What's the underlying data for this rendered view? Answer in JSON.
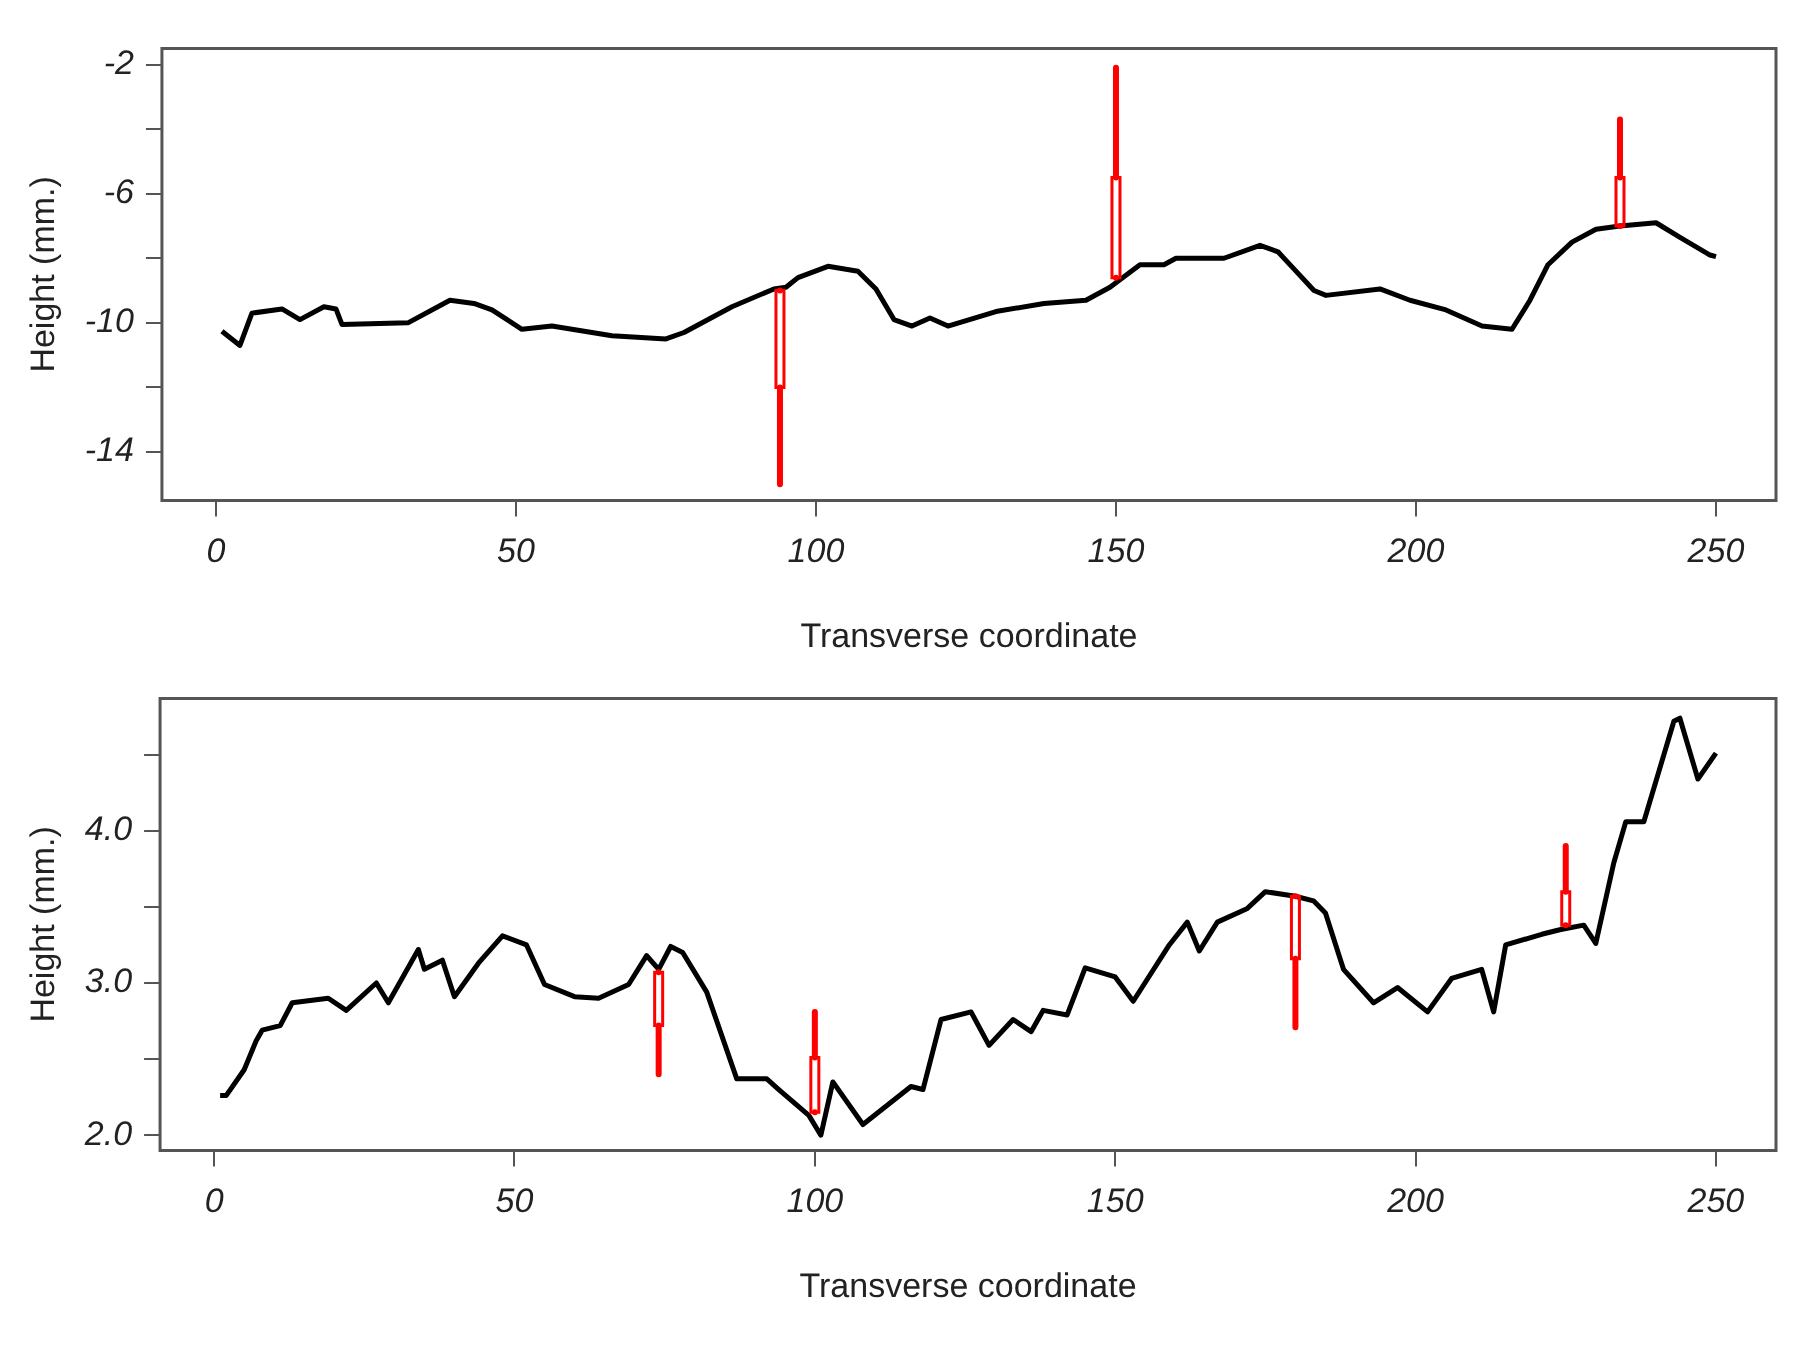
{
  "chart_data": [
    {
      "type": "line",
      "xlabel": "Transverse coordinate",
      "ylabel": "Height (mm.)",
      "xlim": [
        -9,
        260
      ],
      "xticks": [
        0,
        50,
        100,
        150,
        200,
        250
      ],
      "ylim": [
        -15.5,
        -1.5
      ],
      "yticks": [
        {
          "value": -14,
          "label": "-14"
        },
        {
          "value": -12,
          "label": null
        },
        {
          "value": -10,
          "label": "-10"
        },
        {
          "value": -8,
          "label": null
        },
        {
          "value": -6,
          "label": "-6"
        },
        {
          "value": -4,
          "label": null
        },
        {
          "value": -2,
          "label": "-2"
        }
      ],
      "series": [
        {
          "color": "#000000",
          "x": [
            1,
            4,
            6,
            11,
            14,
            18,
            20,
            21,
            32,
            39,
            43,
            46,
            51,
            56,
            66,
            75,
            78,
            86,
            93,
            95,
            97,
            102,
            107,
            110,
            113,
            116,
            119,
            122,
            130,
            138,
            145,
            149,
            154,
            158,
            160,
            168,
            174,
            177,
            180,
            183,
            185,
            194,
            199,
            205,
            211,
            216,
            219,
            222,
            226,
            230,
            234,
            240,
            244,
            249,
            250
          ],
          "values": [
            -10.26,
            -10.7,
            -9.7,
            -9.57,
            -9.9,
            -9.5,
            -9.57,
            -10.05,
            -10,
            -9.3,
            -9.4,
            -9.6,
            -10.2,
            -10.1,
            -10.4,
            -10.5,
            -10.3,
            -9.5,
            -8.95,
            -8.9,
            -8.6,
            -8.25,
            -8.4,
            -8.95,
            -9.9,
            -10.1,
            -9.85,
            -10.1,
            -9.65,
            -9.4,
            -9.3,
            -8.9,
            -8.2,
            -8.2,
            -8,
            -8,
            -7.6,
            -7.8,
            -8.4,
            -9,
            -9.15,
            -8.95,
            -9.3,
            -9.6,
            -10.1,
            -10.2,
            -9.3,
            -8.2,
            -7.5,
            -7.1,
            -7,
            -6.9,
            -7.35,
            -7.9,
            -7.95
          ]
        },
        {
          "type": "candlestick",
          "color": "#ff0000",
          "x": [
            94,
            150,
            234
          ],
          "ohlc": [
            [
              -12,
              -9,
              -15,
              -9
            ],
            [
              -8.6,
              -2.1,
              -8.6,
              -5.5
            ],
            [
              -7,
              -3.7,
              -7,
              -5.5
            ]
          ]
        }
      ]
    },
    {
      "type": "line",
      "xlabel": "Transverse coordinate",
      "ylabel": "Height (mm.)",
      "xlim": [
        -9,
        260
      ],
      "xticks": [
        0,
        50,
        100,
        150,
        200,
        250
      ],
      "ylim": [
        1.9,
        4.87
      ],
      "yticks": [
        {
          "value": 2,
          "label": "2.0"
        },
        {
          "value": 2.5,
          "label": null
        },
        {
          "value": 3,
          "label": "3.0"
        },
        {
          "value": 3.5,
          "label": null
        },
        {
          "value": 4,
          "label": "4.0"
        },
        {
          "value": 4.5,
          "label": null
        }
      ],
      "series": [
        {
          "color": "#000000",
          "x": [
            1,
            2,
            5,
            7,
            8,
            11,
            13,
            19,
            22,
            27,
            29,
            34,
            35,
            38,
            40,
            44,
            48,
            52,
            55,
            60,
            64,
            69,
            72,
            74,
            76,
            78,
            82,
            87,
            92,
            94,
            99,
            101,
            103,
            108,
            116,
            118,
            121,
            126,
            129,
            133,
            136,
            138,
            142,
            145,
            150,
            153,
            159,
            162,
            164,
            167,
            172,
            175,
            180,
            183,
            185,
            188,
            193,
            197,
            202,
            206,
            211,
            213,
            215,
            221,
            224,
            228,
            230,
            233,
            235,
            238,
            243,
            244,
            247,
            250
          ],
          "values": [
            2.26,
            2.26,
            2.43,
            2.62,
            2.69,
            2.72,
            2.87,
            2.9,
            2.82,
            3,
            2.87,
            3.22,
            3.09,
            3.15,
            2.91,
            3.13,
            3.31,
            3.25,
            2.99,
            2.91,
            2.9,
            2.99,
            3.18,
            3.09,
            3.24,
            3.2,
            2.94,
            2.37,
            2.37,
            2.3,
            2.13,
            2,
            2.35,
            2.07,
            2.32,
            2.3,
            2.76,
            2.81,
            2.59,
            2.76,
            2.68,
            2.82,
            2.79,
            3.1,
            3.04,
            2.88,
            3.25,
            3.4,
            3.21,
            3.4,
            3.49,
            3.6,
            3.57,
            3.54,
            3.46,
            3.09,
            2.87,
            2.97,
            2.81,
            3.03,
            3.09,
            2.81,
            3.25,
            3.32,
            3.35,
            3.38,
            3.26,
            3.79,
            4.06,
            4.06,
            4.72,
            4.74,
            4.34,
            4.51
          ]
        },
        {
          "type": "candlestick",
          "color": "#ff0000",
          "x": [
            74,
            100,
            180,
            225
          ],
          "ohlc": [
            [
              2.72,
              3.07,
              2.4,
              3.07
            ],
            [
              2.15,
              2.81,
              2.15,
              2.51
            ],
            [
              3.16,
              3.57,
              2.71,
              3.57
            ],
            [
              3.38,
              3.9,
              3.38,
              3.6
            ]
          ]
        }
      ]
    }
  ]
}
